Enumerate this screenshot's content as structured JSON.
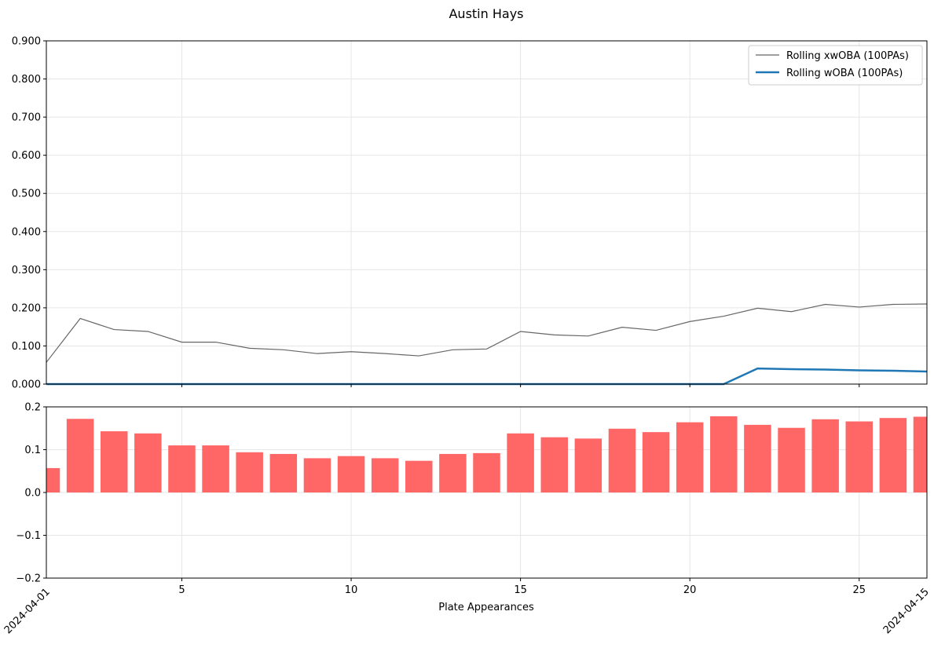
{
  "title": "Austin Hays",
  "colors": {
    "xwoba_line": "#666666",
    "woba_line": "#1f77b4",
    "bars": "#ff6666",
    "grid": "#e6e6e6",
    "axes": "#000000"
  },
  "chart_data": [
    {
      "type": "line",
      "title": "Austin Hays",
      "xlabel": "",
      "ylabel": "",
      "xlim": [
        1,
        27
      ],
      "ylim": [
        0,
        0.9
      ],
      "y_ticks": [
        "0.000",
        "0.100",
        "0.200",
        "0.300",
        "0.400",
        "0.500",
        "0.600",
        "0.700",
        "0.800",
        "0.900"
      ],
      "grid": true,
      "legend_position": "top-right",
      "x": [
        1,
        2,
        3,
        4,
        5,
        6,
        7,
        8,
        9,
        10,
        11,
        12,
        13,
        14,
        15,
        16,
        17,
        18,
        19,
        20,
        21,
        22,
        23,
        24,
        25,
        26,
        27
      ],
      "series": [
        {
          "name": "Rolling xwOBA (100PAs)",
          "values": [
            0.057,
            0.172,
            0.143,
            0.138,
            0.11,
            0.11,
            0.094,
            0.09,
            0.08,
            0.085,
            0.08,
            0.074,
            0.09,
            0.092,
            0.138,
            0.129,
            0.126,
            0.149,
            0.141,
            0.164,
            0.178,
            0.199,
            0.19,
            0.209,
            0.202,
            0.209,
            0.21
          ]
        },
        {
          "name": "Rolling wOBA (100PAs)",
          "values": [
            0,
            0,
            0,
            0,
            0,
            0,
            0,
            0,
            0,
            0,
            0,
            0,
            0,
            0,
            0,
            0,
            0,
            0,
            0,
            0,
            0,
            0.041,
            0.039,
            0.038,
            0.036,
            0.035,
            0.033
          ]
        }
      ]
    },
    {
      "type": "bar",
      "xlabel": "Plate Appearances",
      "ylabel": "",
      "xlim": [
        1,
        27
      ],
      "ylim": [
        -0.2,
        0.2
      ],
      "y_ticks": [
        "−0.2",
        "−0.1",
        "0.0",
        "0.1",
        "0.2"
      ],
      "x_ticks": [
        "5",
        "10",
        "15",
        "20",
        "25"
      ],
      "date_labels": [
        "2024-04-01",
        "2024-04-15"
      ],
      "grid": true,
      "x": [
        1,
        2,
        3,
        4,
        5,
        6,
        7,
        8,
        9,
        10,
        11,
        12,
        13,
        14,
        15,
        16,
        17,
        18,
        19,
        20,
        21,
        22,
        23,
        24,
        25,
        26,
        27
      ],
      "values": [
        0.057,
        0.172,
        0.143,
        0.138,
        0.11,
        0.11,
        0.094,
        0.09,
        0.08,
        0.085,
        0.08,
        0.074,
        0.09,
        0.092,
        0.138,
        0.129,
        0.126,
        0.149,
        0.141,
        0.164,
        0.178,
        0.158,
        0.151,
        0.171,
        0.166,
        0.174,
        0.177
      ]
    }
  ]
}
